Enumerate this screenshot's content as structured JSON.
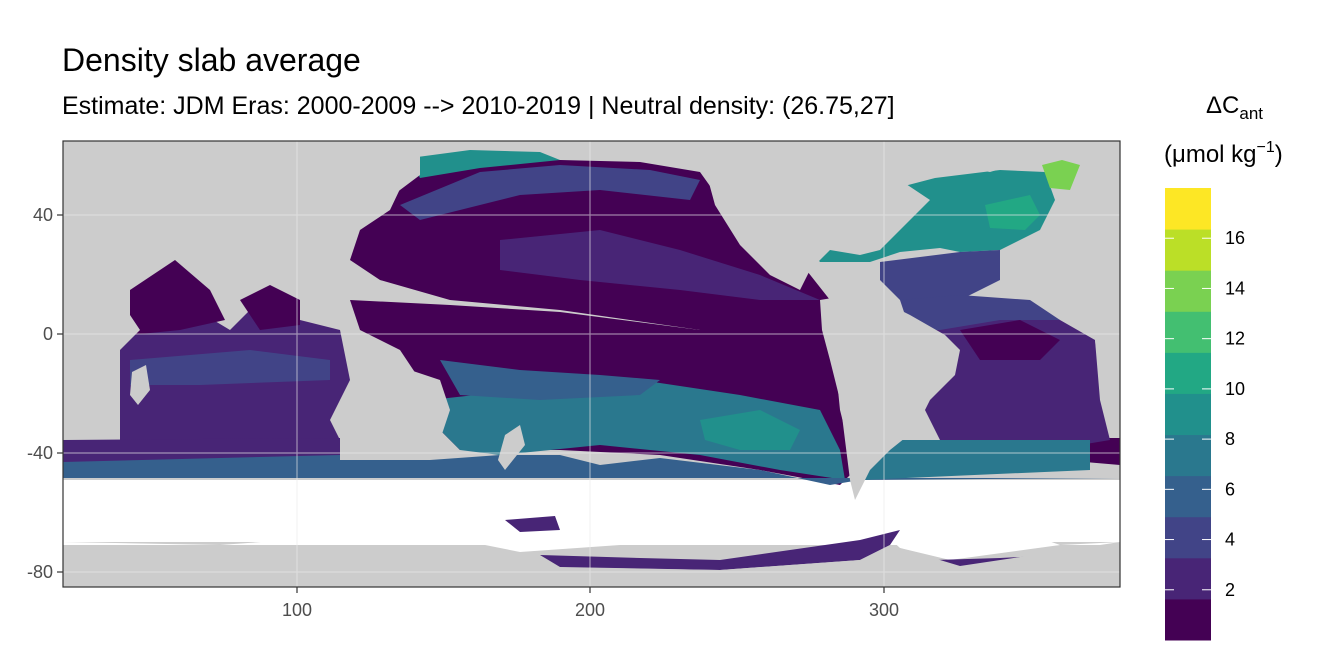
{
  "title": "Density slab average",
  "subtitle": "Estimate: JDM Eras: 2000-2009 --> 2010-2019 | Neutral density: (26.75,27]",
  "legend": {
    "title_main": "ΔC",
    "title_sub": "ant",
    "units_pre": "(μmol kg",
    "units_sup": "−1",
    "units_post": ")",
    "breaks": [
      "2",
      "4",
      "6",
      "8",
      "10",
      "12",
      "14",
      "16"
    ],
    "colors": [
      "#440154",
      "#482576",
      "#414487",
      "#35608D",
      "#2A788E",
      "#21908C",
      "#22A884",
      "#43BF71",
      "#7AD151",
      "#BBDF27",
      "#FDE725"
    ]
  },
  "chart_data": {
    "type": "heatmap",
    "title": "Density slab average",
    "subtitle": "Estimate: JDM Eras: 2000-2009 --> 2010-2019 | Neutral density: (26.75,27]",
    "xlabel": "",
    "ylabel": "",
    "x_ticks": [
      "100",
      "200",
      "300"
    ],
    "y_ticks": [
      "40",
      "0",
      "-40",
      "-80"
    ],
    "xlim": [
      20,
      380
    ],
    "ylim": [
      -85,
      65
    ],
    "grid": true,
    "legend_placement": "right",
    "color_scale": "viridis",
    "value_range": [
      0,
      18
    ]
  }
}
